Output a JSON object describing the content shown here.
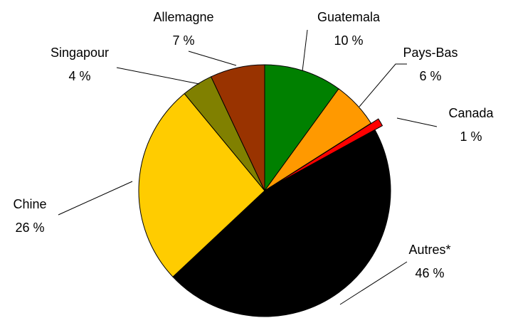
{
  "chart_data": {
    "type": "pie",
    "categories": [
      "Guatemala",
      "Pays-Bas",
      "Canada",
      "Autres*",
      "Chine",
      "Singapour",
      "Allemagne"
    ],
    "values": [
      10,
      6,
      1,
      46,
      26,
      4,
      7
    ],
    "value_labels": [
      "10 %",
      "6 %",
      "1 %",
      "46 %",
      "26 %",
      "4 %",
      "7 %"
    ],
    "colors": [
      "#008000",
      "#ff9900",
      "#ff0000",
      "#000000",
      "#ffcc00",
      "#808000",
      "#993300"
    ]
  }
}
